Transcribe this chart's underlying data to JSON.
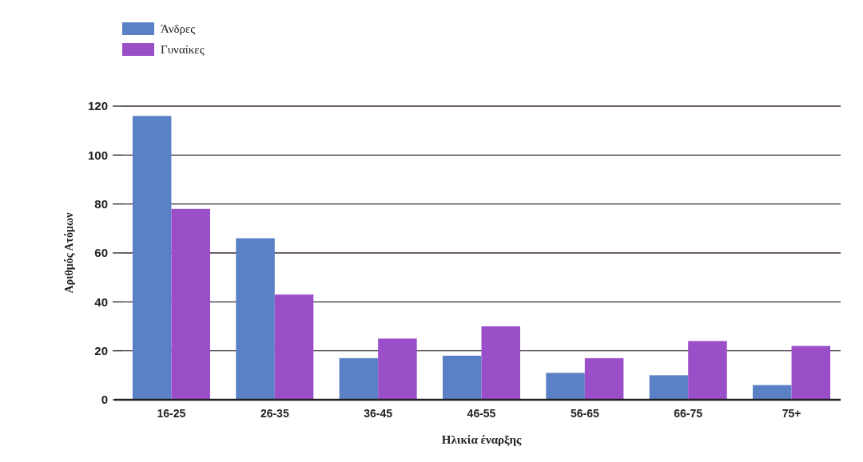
{
  "chart_data": {
    "type": "bar",
    "xlabel": "Ηλικία έναρξης",
    "ylabel": "Αριθμός Ατόμων",
    "categories": [
      "16-25",
      "26-35",
      "36-45",
      "46-55",
      "56-65",
      "66-75",
      "75+"
    ],
    "series": [
      {
        "name": "Άνδρες",
        "color": "#5a80c6",
        "values": [
          116,
          66,
          17,
          18,
          11,
          10,
          6
        ]
      },
      {
        "name": "Γυναίκες",
        "color": "#9a4ec8",
        "values": [
          78,
          43,
          25,
          30,
          17,
          24,
          22
        ]
      }
    ],
    "ylim": [
      0,
      120
    ],
    "yticks": [
      0,
      20,
      40,
      60,
      80,
      100,
      120
    ],
    "grid": "y",
    "legend": "top left"
  }
}
